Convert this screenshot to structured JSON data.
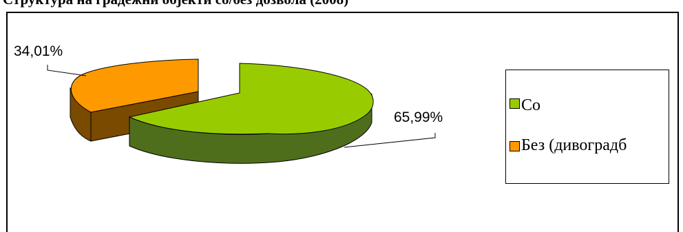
{
  "title_fragment": "Структура на градежни објекти со/без дозвола (2008)",
  "chart_data": {
    "type": "pie",
    "style": "3d-exploded",
    "legend_placement": "right",
    "slices": [
      {
        "label": "Со",
        "value": 65.99,
        "value_label": "65,99%",
        "color": "#99cc00",
        "side_color": "#4f6e1c"
      },
      {
        "label": "Без (дивоградб",
        "value": 34.01,
        "value_label": "34,01%",
        "color": "#ff9900",
        "side_color": "#7a4a00"
      }
    ]
  }
}
